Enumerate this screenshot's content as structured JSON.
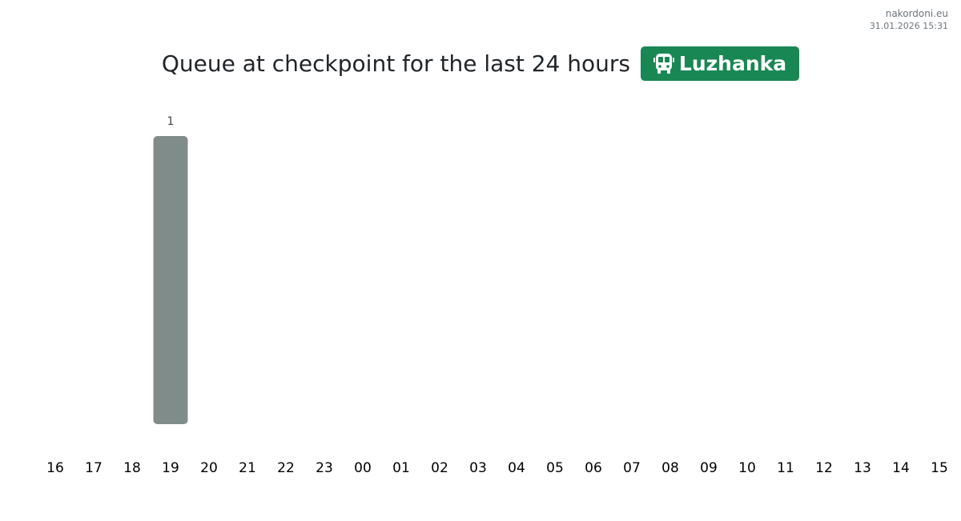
{
  "brand": {
    "site": "nakordoni.eu",
    "datetime": "31.01.2026 15:31"
  },
  "header": {
    "title": "Queue at checkpoint for the last 24 hours",
    "checkpoint": "Luzhanka",
    "checkpoint_icon": "bus-icon",
    "badge_color": "#198754"
  },
  "chart_data": {
    "type": "bar",
    "categories": [
      "16",
      "17",
      "18",
      "19",
      "20",
      "21",
      "22",
      "23",
      "00",
      "01",
      "02",
      "03",
      "04",
      "05",
      "06",
      "07",
      "08",
      "09",
      "10",
      "11",
      "12",
      "13",
      "14",
      "15"
    ],
    "values": [
      0,
      0,
      0,
      1,
      0,
      0,
      0,
      0,
      0,
      0,
      0,
      0,
      0,
      0,
      0,
      0,
      0,
      0,
      0,
      0,
      0,
      0,
      0,
      0
    ],
    "data_labels": [
      "",
      "",
      "",
      "1",
      "",
      "",
      "",
      "",
      "",
      "",
      "",
      "",
      "",
      "",
      "",
      "",
      "",
      "",
      "",
      "",
      "",
      "",
      "",
      ""
    ],
    "bar_color": "#7f8c8a",
    "ylim": [
      0,
      1
    ],
    "grid": false,
    "xlabel": "",
    "ylabel": ""
  }
}
